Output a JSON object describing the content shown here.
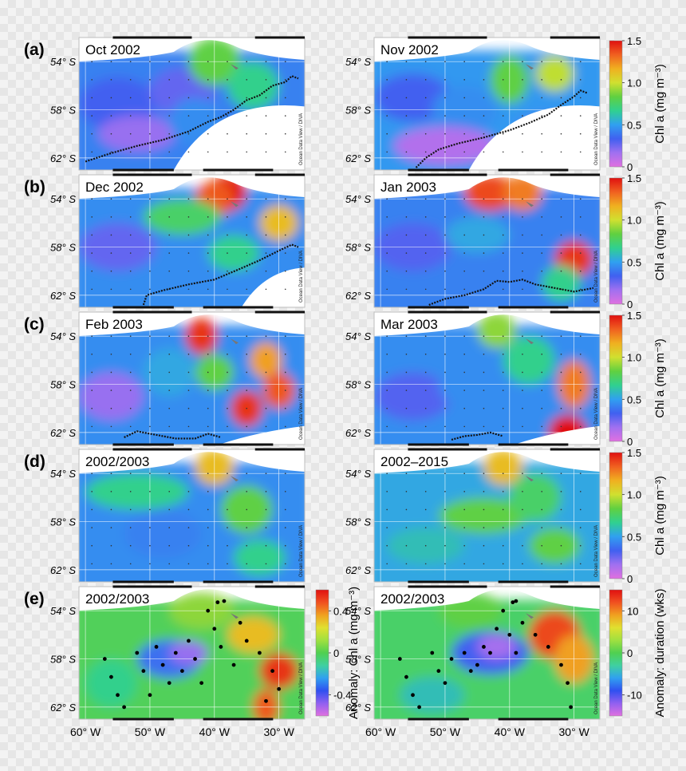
{
  "chart_data": {
    "type": "heatmap",
    "rows": [
      {
        "label": "(a)",
        "maps": [
          {
            "title": "Oct 2002",
            "track": [
              [
                -60,
                -62.3
              ],
              [
                -56,
                -61.6
              ],
              [
                -52,
                -61.0
              ],
              [
                -48,
                -60.5
              ],
              [
                -44,
                -59.8
              ],
              [
                -41,
                -59.0
              ],
              [
                -39,
                -58.6
              ],
              [
                -37,
                -58.0
              ],
              [
                -35,
                -57.2
              ],
              [
                -33,
                -56.8
              ],
              [
                -31,
                -56.0
              ],
              [
                -29,
                -55.7
              ],
              [
                -28,
                -55.2
              ],
              [
                -27,
                -55.4
              ]
            ]
          },
          {
            "title": "Nov 2002",
            "track": [
              [
                -54.5,
                -62.8
              ],
              [
                -53,
                -62
              ],
              [
                -51,
                -61.3
              ],
              [
                -48,
                -60.8
              ],
              [
                -44,
                -60.3
              ],
              [
                -40,
                -59.7
              ],
              [
                -37,
                -59.1
              ],
              [
                -34,
                -58.4
              ],
              [
                -32,
                -57.6
              ],
              [
                -30,
                -56.9
              ],
              [
                -29,
                -56.4
              ],
              [
                -28,
                -56.6
              ]
            ]
          }
        ]
      },
      {
        "label": "(b)",
        "maps": [
          {
            "title": "Dec 2002",
            "track": [
              [
                -51,
                -62.8
              ],
              [
                -50.5,
                -62
              ],
              [
                -48,
                -61.6
              ],
              [
                -44,
                -61.1
              ],
              [
                -40,
                -60.7
              ],
              [
                -36,
                -59.8
              ],
              [
                -33,
                -59.1
              ],
              [
                -30,
                -58.3
              ],
              [
                -28,
                -57.8
              ],
              [
                -27,
                -58
              ]
            ]
          },
          {
            "title": "Jan 2003",
            "track": [
              [
                -52.5,
                -62.8
              ],
              [
                -50,
                -62.3
              ],
              [
                -47,
                -62.0
              ],
              [
                -44,
                -61.5
              ],
              [
                -42,
                -60.8
              ],
              [
                -40,
                -60.9
              ],
              [
                -38,
                -60.7
              ],
              [
                -36,
                -61.1
              ],
              [
                -33,
                -61.4
              ],
              [
                -30,
                -61.7
              ],
              [
                -28,
                -61.5
              ],
              [
                -27,
                -61.4
              ]
            ]
          }
        ]
      },
      {
        "label": "(c)",
        "maps": [
          {
            "title": "Feb 2003",
            "track": [
              [
                -54,
                -62.4
              ],
              [
                -52,
                -61.9
              ],
              [
                -50,
                -62.1
              ],
              [
                -48,
                -62.3
              ],
              [
                -46,
                -62.5
              ],
              [
                -43,
                -62.5
              ],
              [
                -41,
                -62.1
              ],
              [
                -39,
                -62.4
              ]
            ]
          },
          {
            "title": "Mar 2003",
            "track": [
              [
                -49,
                -62.6
              ],
              [
                -47,
                -62.3
              ],
              [
                -45,
                -62.2
              ],
              [
                -43,
                -62.0
              ],
              [
                -41,
                -62.3
              ]
            ]
          }
        ]
      },
      {
        "label": "(d)",
        "maps": [
          {
            "title": "2002/2003",
            "track": []
          },
          {
            "title": "2002–2015",
            "track": []
          }
        ]
      },
      {
        "label": "(e)",
        "maps": [
          {
            "title": "2002/2003",
            "track": []
          },
          {
            "title": "2002/2003",
            "track": []
          }
        ]
      }
    ],
    "lat_ticks": [
      "54° S",
      "58° S",
      "62° S"
    ],
    "lat_values": [
      -54,
      -58,
      -62
    ],
    "lon_ticks": [
      "60° W",
      "50° W",
      "40° W",
      "30° W"
    ],
    "lon_values": [
      -60,
      -50,
      -40,
      -30
    ],
    "xlim": [
      -61,
      -26
    ],
    "ylim": [
      -63,
      -52
    ],
    "colorbars": [
      {
        "label": "Chl a (mg m⁻³)",
        "ticks": [
          "1.5",
          "1.0",
          "0.5",
          "0"
        ],
        "tick_values": [
          1.5,
          1.0,
          0.5,
          0
        ]
      },
      {
        "label": "Chl a (mg m⁻³)",
        "ticks": [
          "1.5",
          "1.0",
          "0.5",
          "0"
        ],
        "tick_values": [
          1.5,
          1.0,
          0.5,
          0
        ]
      },
      {
        "label": "Chl a (mg m⁻³)",
        "ticks": [
          "1.5",
          "1.0",
          "0.5",
          "0"
        ],
        "tick_values": [
          1.5,
          1.0,
          0.5,
          0
        ]
      },
      {
        "label": "Chl a (mg m⁻³)",
        "ticks": [
          "1.5",
          "1.0",
          "0.5",
          "0"
        ],
        "tick_values": [
          1.5,
          1.0,
          0.5,
          0
        ]
      }
    ],
    "anomaly_colorbars": [
      {
        "label": "Anomaly: Chl a (mg m⁻³)",
        "ticks": [
          "0.4",
          "0",
          "-0.4"
        ],
        "tick_values": [
          0.4,
          0,
          -0.4
        ],
        "range": [
          -0.6,
          0.6
        ]
      },
      {
        "label": "Anomaly: duration (wks)",
        "ticks": [
          "10",
          "0",
          "-10"
        ],
        "tick_values": [
          10,
          0,
          -10
        ],
        "range": [
          -15,
          15
        ]
      }
    ],
    "watermark": "Ocean Data View / DIVA",
    "palette": [
      "#e070e0",
      "#a070f0",
      "#4060f0",
      "#30a0f0",
      "#30d090",
      "#60d040",
      "#d0e030",
      "#f0b020",
      "#f06020",
      "#e01010"
    ]
  }
}
